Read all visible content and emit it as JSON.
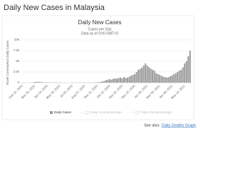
{
  "page_title": "Daily New Cases in Malaysia",
  "see_also": {
    "label": "See also:",
    "link": "Daily Deaths Graph"
  },
  "chart_data": {
    "type": "bar",
    "title": "Daily New Cases",
    "subtitle": [
      "Cases per Day",
      "Data as of 0:00 GMT+0"
    ],
    "y_label": "Novel Coronavirus Daily Cases",
    "categories": [
      "Feb 15, 2020",
      null,
      null,
      null,
      null,
      null,
      null,
      "Mar 20, 2020",
      null,
      null,
      null,
      null,
      null,
      null,
      "Apr 24, 2020",
      null,
      null,
      null,
      null,
      null,
      null,
      "May 29, 2020",
      null,
      null,
      null,
      null,
      null,
      null,
      "Jul 03, 2020",
      null,
      null,
      null,
      null,
      null,
      null,
      "Aug 07, 2020",
      null,
      null,
      null,
      null,
      null,
      null,
      "Sep 11, 2020",
      null,
      null,
      null,
      null,
      null,
      null,
      "Oct 16, 2020",
      null,
      null,
      null,
      null,
      null,
      null,
      "Nov 20, 2020",
      null,
      null,
      null,
      null,
      null,
      null,
      "Dec 25, 2020",
      null,
      null,
      null,
      null,
      null,
      null,
      "Jan 29, 2021",
      null,
      null,
      null,
      null,
      null,
      null,
      "Mar 05, 2021",
      null,
      null,
      null,
      null,
      null,
      null,
      "Apr 09, 2021",
      null,
      null,
      null,
      null,
      null,
      null,
      "May 14, 2021",
      null,
      null,
      null
    ],
    "series": [
      {
        "name": "Daily Cases",
        "color": "#9a9a9a",
        "values": [
          0,
          0,
          0,
          0,
          0,
          5,
          20,
          150,
          200,
          170,
          150,
          120,
          80,
          60,
          50,
          40,
          40,
          30,
          60,
          30,
          20,
          15,
          10,
          10,
          10,
          5,
          5,
          5,
          5,
          5,
          10,
          10,
          15,
          20,
          15,
          15,
          20,
          25,
          20,
          15,
          30,
          60,
          80,
          120,
          200,
          300,
          400,
          600,
          700,
          800,
          700,
          900,
          1000,
          900,
          1100,
          1200,
          1000,
          1300,
          1100,
          1200,
          1400,
          1600,
          1800,
          2000,
          2500,
          3000,
          3200,
          3500,
          4000,
          4500,
          4000,
          3600,
          3300,
          3000,
          2800,
          2200,
          2000,
          1800,
          1600,
          1400,
          1300,
          1200,
          1300,
          1500,
          1700,
          2000,
          2200,
          2500,
          2800,
          3000,
          3600,
          4500,
          5000,
          6200,
          7500
        ]
      }
    ],
    "inactive_series_names": [
      "3-day moving average",
      "7-day moving average"
    ],
    "ylim": [
      0,
      10000
    ],
    "yticks": [
      0,
      {
        "value": 2500,
        "label": "2.5k"
      },
      {
        "value": 5000,
        "label": "5k"
      },
      {
        "value": 7500,
        "label": "7.5k"
      },
      {
        "value": 10000,
        "label": "10k"
      }
    ],
    "grid": true
  }
}
